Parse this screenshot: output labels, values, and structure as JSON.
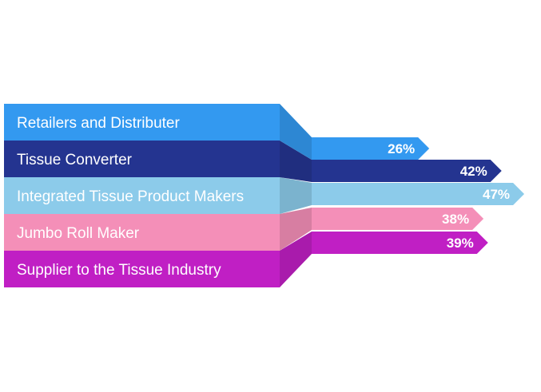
{
  "chart_data": {
    "type": "bar",
    "title": "",
    "xlabel": "",
    "ylabel": "",
    "xlim": [
      0,
      50
    ],
    "value_suffix": "%",
    "categories": [
      "Retailers and Distributer",
      "Tissue Converter",
      "Integrated Tissue Product Makers",
      "Jumbo Roll Maker",
      "Supplier to the Tissue Industry"
    ],
    "values": [
      26,
      42,
      47,
      38,
      39
    ],
    "colors": [
      "#3399f0",
      "#243490",
      "#8ccbea",
      "#f48fb8",
      "#c01fc4"
    ],
    "value_labels": [
      "26%",
      "42%",
      "47%",
      "38%",
      "39%"
    ]
  }
}
